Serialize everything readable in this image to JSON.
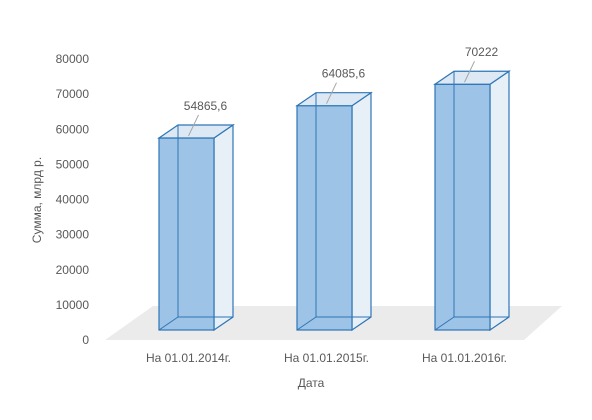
{
  "chart_data": {
    "type": "bar",
    "style": "3d-column",
    "categories": [
      "На 01.01.2014г.",
      "На 01.01.2015г.",
      "На 01.01.2016г."
    ],
    "values": [
      54865.6,
      64085.6,
      70222
    ],
    "data_labels": [
      "54865,6",
      "64085,6",
      "70222"
    ],
    "xlabel": "Дата",
    "ylabel": "Сумма, млрд р.",
    "ylim": [
      0,
      80000
    ],
    "y_ticks": [
      "0",
      "10000",
      "20000",
      "30000",
      "40000",
      "50000",
      "60000",
      "70000",
      "80000"
    ],
    "grid": false,
    "legend": "none",
    "colors": {
      "bar_fill": "#9dc3e6",
      "bar_edge": "#2e75b6",
      "floor": "#ebebeb",
      "text": "#595959",
      "leader": "#a6a6a6"
    }
  }
}
